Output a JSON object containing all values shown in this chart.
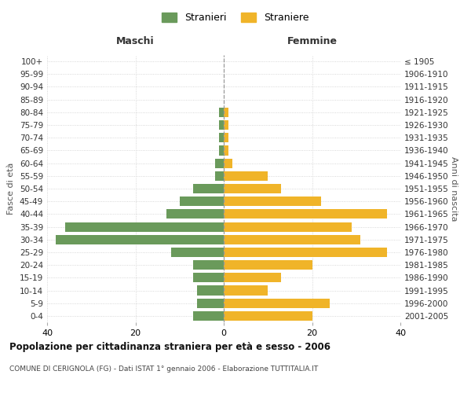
{
  "age_groups": [
    "100+",
    "95-99",
    "90-94",
    "85-89",
    "80-84",
    "75-79",
    "70-74",
    "65-69",
    "60-64",
    "55-59",
    "50-54",
    "45-49",
    "40-44",
    "35-39",
    "30-34",
    "25-29",
    "20-24",
    "15-19",
    "10-14",
    "5-9",
    "0-4"
  ],
  "birth_years": [
    "≤ 1905",
    "1906-1910",
    "1911-1915",
    "1916-1920",
    "1921-1925",
    "1926-1930",
    "1931-1935",
    "1936-1940",
    "1941-1945",
    "1946-1950",
    "1951-1955",
    "1956-1960",
    "1961-1965",
    "1966-1970",
    "1971-1975",
    "1976-1980",
    "1981-1985",
    "1986-1990",
    "1991-1995",
    "1996-2000",
    "2001-2005"
  ],
  "maschi": [
    0,
    0,
    0,
    0,
    1,
    1,
    1,
    1,
    2,
    2,
    7,
    10,
    13,
    36,
    38,
    12,
    7,
    7,
    6,
    6,
    7
  ],
  "femmine": [
    0,
    0,
    0,
    0,
    1,
    1,
    1,
    1,
    2,
    10,
    13,
    22,
    37,
    29,
    31,
    37,
    20,
    13,
    10,
    24,
    20
  ],
  "maschi_color": "#6a9a5b",
  "femmine_color": "#f0b429",
  "background_color": "#ffffff",
  "grid_color": "#cccccc",
  "title": "Popolazione per cittadinanza straniera per età e sesso - 2006",
  "subtitle": "COMUNE DI CERIGNOLA (FG) - Dati ISTAT 1° gennaio 2006 - Elaborazione TUTTITALIA.IT",
  "xlabel_left": "Maschi",
  "xlabel_right": "Femmine",
  "ylabel_left": "Fasce di età",
  "ylabel_right": "Anni di nascita",
  "legend_maschi": "Stranieri",
  "legend_femmine": "Straniere",
  "xlim": 40
}
